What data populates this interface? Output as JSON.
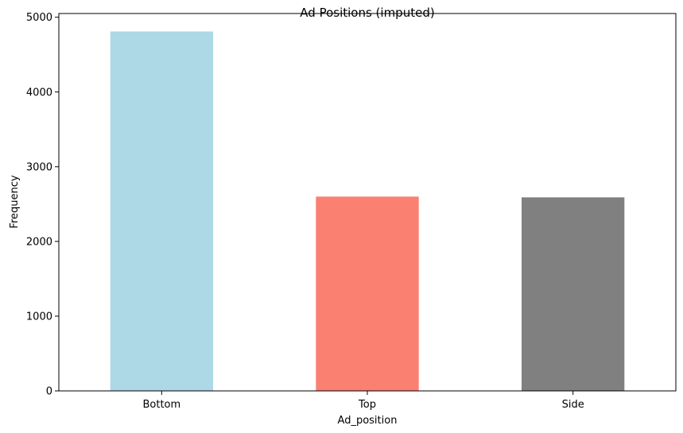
{
  "chart_data": {
    "type": "bar",
    "title": "Ad Positions (imputed)",
    "xlabel": "Ad_position",
    "ylabel": "Frequency",
    "categories": [
      "Bottom",
      "Top",
      "Side"
    ],
    "values": [
      4810,
      2600,
      2590
    ],
    "colors": [
      "#add8e6",
      "#fa8072",
      "#808080"
    ],
    "ylim": [
      0,
      5050
    ],
    "yticks": [
      0,
      1000,
      2000,
      3000,
      4000,
      5000
    ],
    "grid": false,
    "legend": "none"
  }
}
